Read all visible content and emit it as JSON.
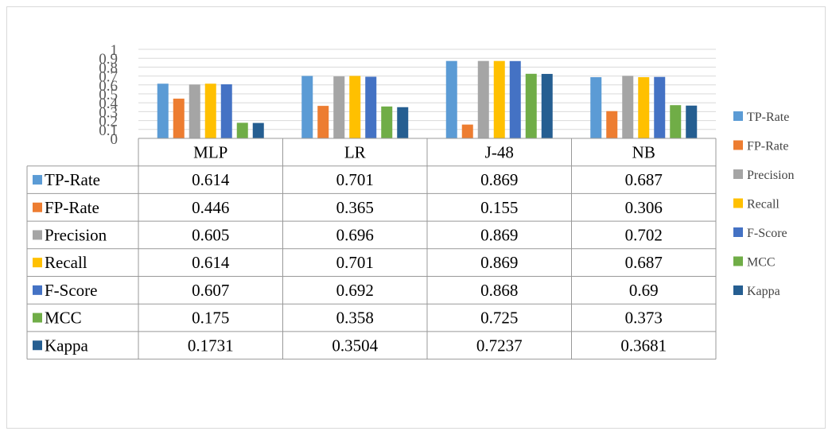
{
  "chart_data": {
    "type": "bar",
    "categories": [
      "MLP",
      "LR",
      "J-48",
      "NB"
    ],
    "series": [
      {
        "name": "TP-Rate",
        "color": "#5B9BD5",
        "values": [
          "0.614",
          "0.701",
          "0.869",
          "0.687"
        ]
      },
      {
        "name": "FP-Rate",
        "color": "#ED7D31",
        "values": [
          "0.446",
          "0.365",
          "0.155",
          "0.306"
        ]
      },
      {
        "name": "Precision",
        "color": "#A5A5A5",
        "values": [
          "0.605",
          "0.696",
          "0.869",
          "0.702"
        ]
      },
      {
        "name": "Recall",
        "color": "#FFC000",
        "values": [
          "0.614",
          "0.701",
          "0.869",
          "0.687"
        ]
      },
      {
        "name": "F-Score",
        "color": "#4472C4",
        "values": [
          "0.607",
          "0.692",
          "0.868",
          "0.69"
        ]
      },
      {
        "name": "MCC",
        "color": "#70AD47",
        "values": [
          "0.175",
          "0.358",
          "0.725",
          "0.373"
        ]
      },
      {
        "name": "Kappa",
        "color": "#255E91",
        "values": [
          "0.1731",
          "0.3504",
          "0.7237",
          "0.3681"
        ]
      }
    ],
    "y_ticks": [
      "0",
      "0.1",
      "0.2",
      "0.3",
      "0.4",
      "0.5",
      "0.6",
      "0.7",
      "0.8",
      "0.9",
      "1"
    ],
    "ylim": [
      0,
      1
    ],
    "grid": true,
    "legend": "right",
    "data_table": true,
    "gridline_color": "#d9d9d9",
    "table_border_color": "#999999"
  }
}
